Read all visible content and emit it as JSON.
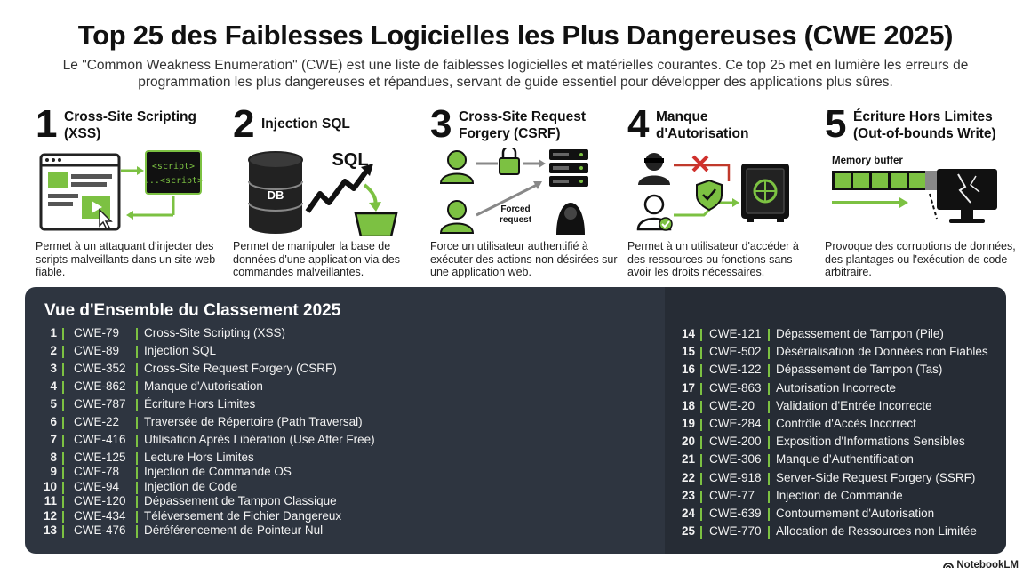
{
  "title": "Top 25 des Faiblesses Logicielles les Plus Dangereuses (CWE 2025)",
  "intro": "Le \"Common Weakness Enumeration\" (CWE) est une liste de faiblesses logicielles et matérielles courantes. Ce top 25 met en lumière les erreurs de programmation les plus dangereuses et répandues, servant de guide essentiel pour développer des applications plus sûres.",
  "colors": {
    "accent": "#7cc142",
    "panel": "#2e3540",
    "panel_right": "#262c35"
  },
  "cards": [
    {
      "num": "1",
      "title_l1": "Cross-Site Scripting",
      "title_l2": "(XSS)",
      "desc": "Permet à un attaquant d'injecter des scripts malveillants dans un site web fiable.",
      "ill": {
        "tag1": "<script>",
        "tag2": "...<script>"
      }
    },
    {
      "num": "2",
      "title_l1": "Injection SQL",
      "title_l2": "",
      "desc": "Permet de manipuler la base de données d'une application via des commandes malveillantes.",
      "ill": {
        "db": "DB",
        "sql": "SQL"
      }
    },
    {
      "num": "3",
      "title_l1": "Cross-Site Request",
      "title_l2": "Forgery (CSRF)",
      "desc": "Force un utilisateur authentifié à exécuter des actions non désirées sur une application web.",
      "ill": {
        "forced_l1": "Forced",
        "forced_l2": "request"
      }
    },
    {
      "num": "4",
      "title_l1": "Manque",
      "title_l2": "d'Autorisation",
      "desc": "Permet à un utilisateur d'accéder à des ressources ou fonctions sans avoir les droits nécessaires.",
      "ill": {}
    },
    {
      "num": "5",
      "title_l1": "Écriture Hors Limites",
      "title_l2": "(Out-of-bounds Write)",
      "desc": "Provoque des corruptions de données, des plantages ou l'exécution de code arbitraire.",
      "ill": {
        "buffer": "Memory buffer"
      }
    }
  ],
  "ranking": {
    "title": "Vue d'Ensemble du Classement 2025",
    "left": [
      {
        "rank": "1",
        "code": "CWE-79",
        "name": "Cross-Site Scripting (XSS)"
      },
      {
        "rank": "2",
        "code": "CWE-89",
        "name": "Injection SQL"
      },
      {
        "rank": "3",
        "code": "CWE-352",
        "name": "Cross-Site Request Forgery (CSRF)"
      },
      {
        "rank": "4",
        "code": "CWE-862",
        "name": "Manque d'Autorisation"
      },
      {
        "rank": "5",
        "code": "CWE-787",
        "name": "Écriture Hors Limites"
      },
      {
        "rank": "6",
        "code": "CWE-22",
        "name": "Traversée de Répertoire (Path Traversal)"
      },
      {
        "rank": "7",
        "code": "CWE-416",
        "name": "Utilisation Après Libération (Use After Free)"
      },
      {
        "rank": "8",
        "code": "CWE-125",
        "name": "Lecture Hors Limites"
      },
      {
        "rank": "9",
        "code": "CWE-78",
        "name": "Injection de Commande OS"
      },
      {
        "rank": "10",
        "code": "CWE-94",
        "name": "Injection de Code"
      },
      {
        "rank": "11",
        "code": "CWE-120",
        "name": "Dépassement de Tampon Classique"
      },
      {
        "rank": "12",
        "code": "CWE-434",
        "name": "Téléversement de Fichier Dangereux"
      },
      {
        "rank": "13",
        "code": "CWE-476",
        "name": "Déréférencement de Pointeur Nul"
      }
    ],
    "right": [
      {
        "rank": "14",
        "code": "CWE-121",
        "name": "Dépassement de Tampon (Pile)"
      },
      {
        "rank": "15",
        "code": "CWE-502",
        "name": "Désérialisation de Données non Fiables"
      },
      {
        "rank": "16",
        "code": "CWE-122",
        "name": "Dépassement de Tampon (Tas)"
      },
      {
        "rank": "17",
        "code": "CWE-863",
        "name": "Autorisation Incorrecte"
      },
      {
        "rank": "18",
        "code": "CWE-20",
        "name": "Validation d'Entrée Incorrecte"
      },
      {
        "rank": "19",
        "code": "CWE-284",
        "name": "Contrôle d'Accès Incorrect"
      },
      {
        "rank": "20",
        "code": "CWE-200",
        "name": "Exposition d'Informations Sensibles"
      },
      {
        "rank": "21",
        "code": "CWE-306",
        "name": "Manque d'Authentification"
      },
      {
        "rank": "22",
        "code": "CWE-918",
        "name": "Server-Side Request Forgery (SSRF)"
      },
      {
        "rank": "23",
        "code": "CWE-77",
        "name": "Injection de Commande"
      },
      {
        "rank": "24",
        "code": "CWE-639",
        "name": "Contournement d'Autorisation"
      },
      {
        "rank": "25",
        "code": "CWE-770",
        "name": "Allocation de Ressources non Limitée"
      }
    ]
  },
  "brand": "NotebookLM"
}
